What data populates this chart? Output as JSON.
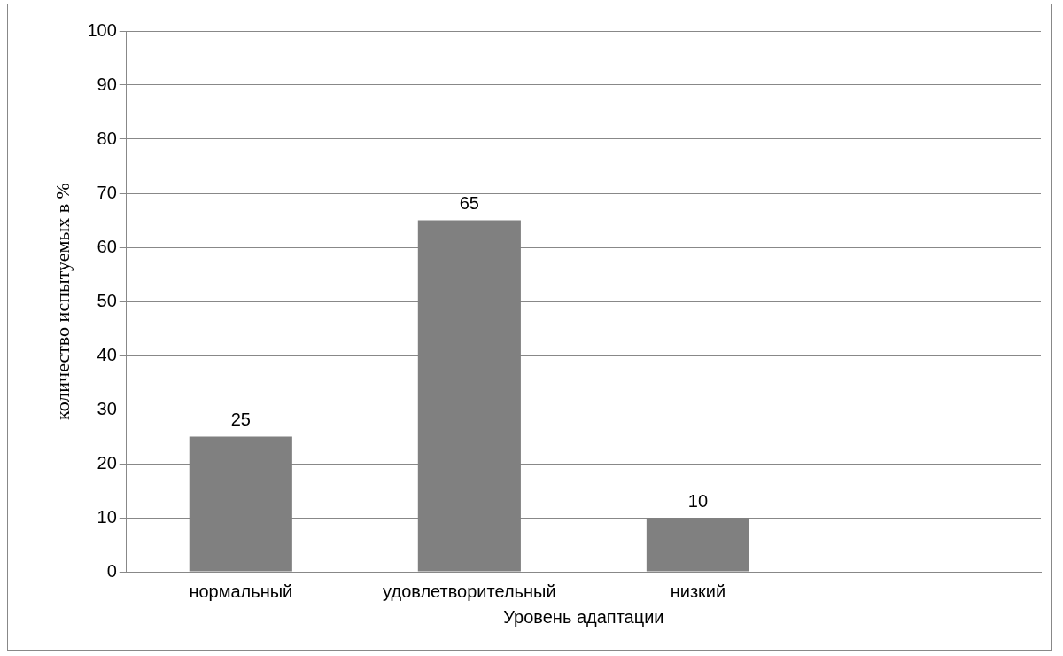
{
  "chart_data": {
    "type": "bar",
    "xlabel": "Уровень адаптации",
    "ylabel": "количество испытуемых в %",
    "categories": [
      "нормальный",
      "удовлетворительный",
      "низкий",
      null
    ],
    "values": [
      25,
      65,
      10,
      null
    ],
    "color": "#808080",
    "ylim": [
      0,
      100
    ],
    "yticks": [
      0,
      10,
      20,
      30,
      40,
      50,
      60,
      70,
      80,
      90,
      100
    ],
    "grid": "y",
    "data_labels": true
  }
}
